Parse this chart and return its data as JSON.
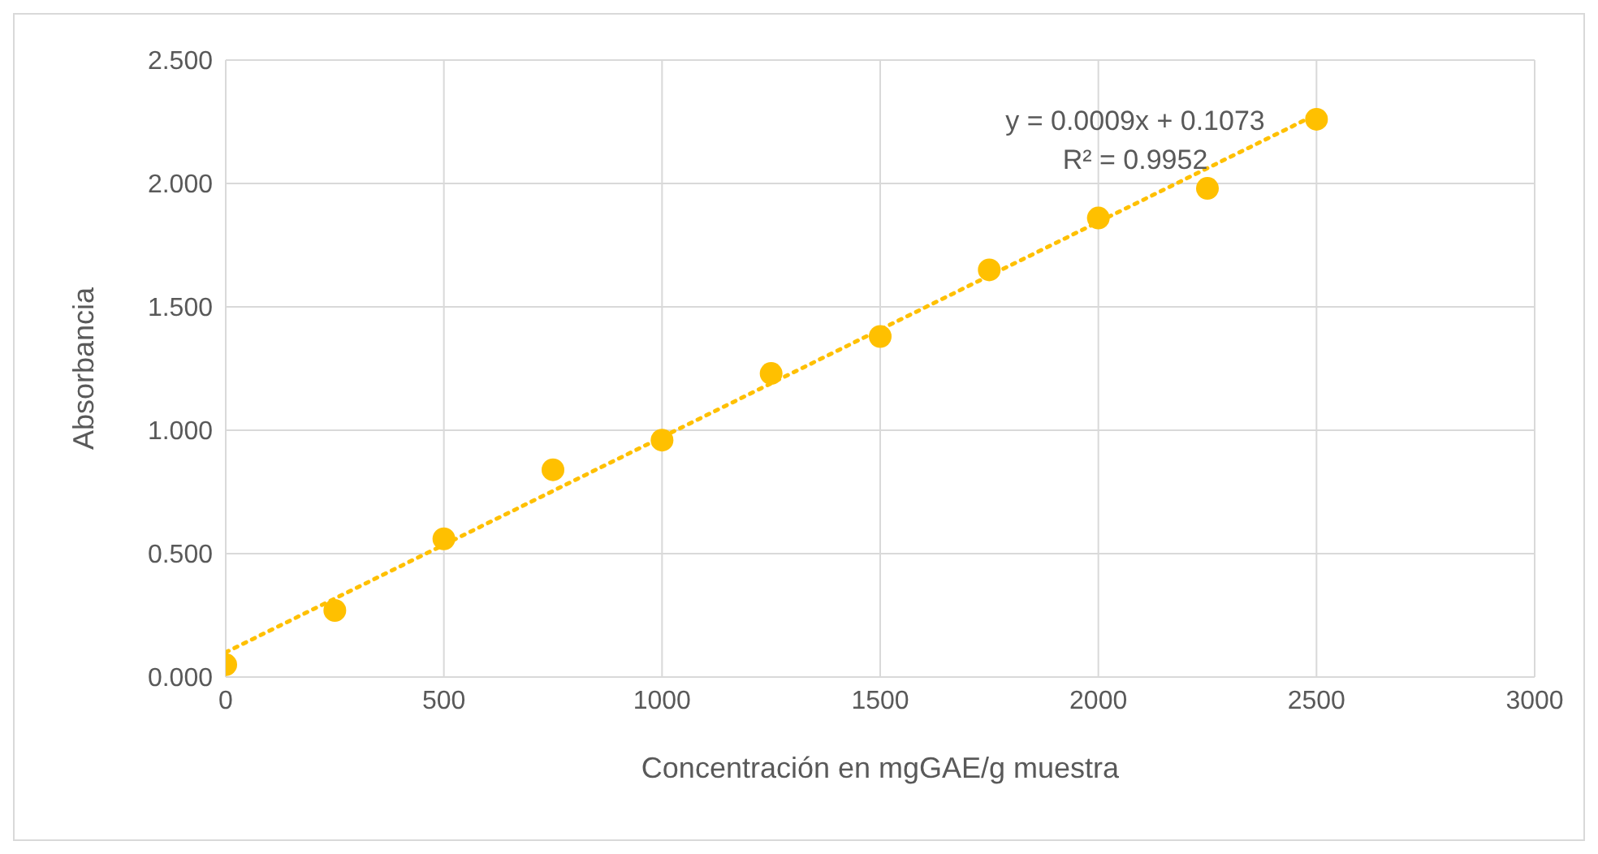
{
  "chart_data": {
    "type": "scatter",
    "xlabel": "Concentración en mgGAE/g muestra",
    "ylabel": "Absorbancia",
    "x": [
      0,
      250,
      500,
      750,
      1000,
      1250,
      1500,
      1750,
      2000,
      2250,
      2500
    ],
    "series": [
      {
        "color": "#ffc000",
        "marker": "circle",
        "values": [
          0.05,
          0.27,
          0.56,
          0.84,
          0.96,
          1.23,
          1.38,
          1.65,
          1.86,
          1.98,
          2.26
        ]
      },
      {
        "type": "line",
        "color": "#ffc000",
        "line_style": "dotted",
        "marker": "none",
        "x": [
          0,
          2500
        ],
        "values": [
          0.1,
          2.28
        ]
      }
    ],
    "xlim": [
      0,
      3000
    ],
    "xticks": [
      0,
      500,
      1000,
      1500,
      2000,
      2500,
      3000
    ],
    "ylim": [
      0,
      2.5
    ],
    "yticks": [
      {
        "value": 0,
        "label": "0.000"
      },
      {
        "value": 0.5,
        "label": "0.500"
      },
      {
        "value": 1,
        "label": "1.000"
      },
      {
        "value": 1.5,
        "label": "1.500"
      },
      {
        "value": 2,
        "label": "2.000"
      },
      {
        "value": 2.5,
        "label": "2.500"
      }
    ],
    "grid": true,
    "annotations": [
      "y = 0.0009x + 0.1073",
      "R² = 0.9952"
    ]
  }
}
